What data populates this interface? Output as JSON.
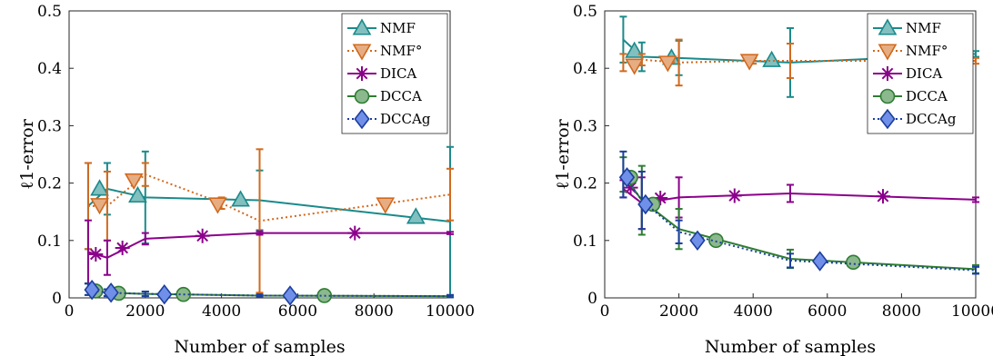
{
  "chart_data": [
    {
      "type": "line",
      "xlabel": "Number of samples",
      "ylabel": "ℓ1-error",
      "xlim": [
        0,
        10000
      ],
      "ylim": [
        0,
        0.5
      ],
      "x_ticks": [
        0,
        2000,
        4000,
        6000,
        8000,
        10000
      ],
      "y_ticks": [
        0,
        0.1,
        0.2,
        0.3,
        0.4,
        0.5
      ],
      "x_tick_labels": [
        "0",
        "2000",
        "4000",
        "6000",
        "8000",
        "10000"
      ],
      "y_tick_labels": [
        "0",
        "0.1",
        "0.2",
        "0.3",
        "0.4",
        "0.5"
      ],
      "legend_position": "top-right",
      "grid": false,
      "series": [
        {
          "name": "NMF",
          "color": "#1b8a8a",
          "dash": "solid",
          "marker": "triangle-up",
          "x": [
            500,
            1000,
            2000,
            5000,
            10000
          ],
          "y": [
            0.16,
            0.19,
            0.175,
            0.17,
            0.133
          ],
          "err": [
            0.075,
            0.045,
            0.08,
            0.052,
            0.13
          ],
          "marker_x": [
            800,
            1800,
            4500,
            9100
          ],
          "marker_y": [
            0.19,
            0.178,
            0.171,
            0.141
          ]
        },
        {
          "name": "NMF°",
          "color": "#d2691e",
          "dash": "dotted",
          "marker": "triangle-down",
          "x": [
            500,
            1000,
            2000,
            4000,
            5000,
            10000
          ],
          "y": [
            0.16,
            0.16,
            0.215,
            0.165,
            0.134,
            0.18
          ],
          "err": [
            0.075,
            0.06,
            0.02,
            0.01,
            0.125,
            0.045
          ],
          "marker_x": [
            800,
            1700,
            3900,
            8300
          ],
          "marker_y": [
            0.162,
            0.205,
            0.163,
            0.163
          ]
        },
        {
          "name": "DICA",
          "color": "#8b008b",
          "dash": "solid",
          "marker": "star",
          "x": [
            500,
            1000,
            2000,
            5000,
            10000
          ],
          "y": [
            0.08,
            0.07,
            0.103,
            0.113,
            0.113
          ],
          "err": [
            0.055,
            0.03,
            0.01,
            0.003,
            0.002
          ],
          "marker_x": [
            700,
            1400,
            3500,
            7500
          ],
          "marker_y": [
            0.076,
            0.087,
            0.108,
            0.113
          ]
        },
        {
          "name": "DCCA",
          "color": "#2e7d32",
          "dash": "solid",
          "marker": "circle",
          "x": [
            500,
            1000,
            2000,
            5000,
            10000
          ],
          "y": [
            0.015,
            0.009,
            0.007,
            0.004,
            0.003
          ],
          "err": [
            0.01,
            0.006,
            0.004,
            0.002,
            0.002
          ],
          "marker_x": [
            700,
            1300,
            3000,
            6700
          ],
          "marker_y": [
            0.012,
            0.008,
            0.006,
            0.004
          ]
        },
        {
          "name": "DCCAg",
          "color": "#1c3f9e",
          "dash": "dotted",
          "marker": "diamond",
          "x": [
            500,
            1000,
            2000,
            5000,
            10000
          ],
          "y": [
            0.015,
            0.009,
            0.007,
            0.004,
            0.003
          ],
          "err": [
            0.01,
            0.006,
            0.004,
            0.002,
            0.002
          ],
          "marker_x": [
            600,
            1100,
            2500,
            5800
          ],
          "marker_y": [
            0.014,
            0.009,
            0.006,
            0.004
          ]
        }
      ]
    },
    {
      "type": "line",
      "xlabel": "Number of samples",
      "ylabel": "ℓ1-error",
      "xlim": [
        0,
        10000
      ],
      "ylim": [
        0,
        0.5
      ],
      "x_ticks": [
        0,
        2000,
        4000,
        6000,
        8000,
        10000
      ],
      "y_ticks": [
        0,
        0.1,
        0.2,
        0.3,
        0.4,
        0.5
      ],
      "x_tick_labels": [
        "0",
        "2000",
        "4000",
        "6000",
        "8000",
        "10000"
      ],
      "y_tick_labels": [
        "0",
        "0.1",
        "0.2",
        "0.3",
        "0.4",
        "0.5"
      ],
      "legend_position": "top-right",
      "grid": false,
      "series": [
        {
          "name": "NMF",
          "color": "#1b8a8a",
          "dash": "solid",
          "marker": "triangle-up",
          "x": [
            500,
            1000,
            2000,
            5000,
            10000
          ],
          "y": [
            0.45,
            0.42,
            0.418,
            0.41,
            0.425
          ],
          "err": [
            0.04,
            0.025,
            0.03,
            0.06,
            0.005
          ],
          "marker_x": [
            800,
            1800,
            4500,
            9100
          ],
          "marker_y": [
            0.43,
            0.418,
            0.414,
            0.42
          ]
        },
        {
          "name": "NMF°",
          "color": "#d2691e",
          "dash": "dotted",
          "marker": "triangle-down",
          "x": [
            500,
            1000,
            2000,
            4000,
            5000,
            10000
          ],
          "y": [
            0.41,
            0.415,
            0.41,
            0.413,
            0.413,
            0.413
          ],
          "err": [
            0.015,
            0.01,
            0.04,
            0.005,
            0.03,
            0.005
          ],
          "marker_x": [
            800,
            1700,
            3900,
            8300
          ],
          "marker_y": [
            0.405,
            0.41,
            0.413,
            0.413
          ]
        },
        {
          "name": "DICA",
          "color": "#8b008b",
          "dash": "solid",
          "marker": "star",
          "x": [
            500,
            1000,
            2000,
            5000,
            10000
          ],
          "y": [
            0.19,
            0.165,
            0.175,
            0.182,
            0.171
          ],
          "err": [
            0.015,
            0.045,
            0.035,
            0.015,
            0.004
          ],
          "marker_x": [
            700,
            1500,
            3500,
            7500
          ],
          "marker_y": [
            0.192,
            0.174,
            0.178,
            0.177
          ]
        },
        {
          "name": "DCCA",
          "color": "#2e7d32",
          "dash": "solid",
          "marker": "circle",
          "x": [
            500,
            1000,
            2000,
            5000,
            10000
          ],
          "y": [
            0.215,
            0.17,
            0.12,
            0.068,
            0.05
          ],
          "err": [
            0.03,
            0.06,
            0.035,
            0.016,
            0.007
          ],
          "marker_x": [
            700,
            1300,
            3000,
            6700
          ],
          "marker_y": [
            0.21,
            0.163,
            0.1,
            0.062
          ]
        },
        {
          "name": "DCCAg",
          "color": "#1c3f9e",
          "dash": "dotted",
          "marker": "diamond",
          "x": [
            500,
            1000,
            2000,
            5000,
            10000
          ],
          "y": [
            0.215,
            0.17,
            0.115,
            0.065,
            0.048
          ],
          "err": [
            0.04,
            0.05,
            0.02,
            0.012,
            0.006
          ],
          "marker_x": [
            600,
            1100,
            2500,
            5800
          ],
          "marker_y": [
            0.21,
            0.163,
            0.1,
            0.064
          ]
        }
      ]
    }
  ]
}
